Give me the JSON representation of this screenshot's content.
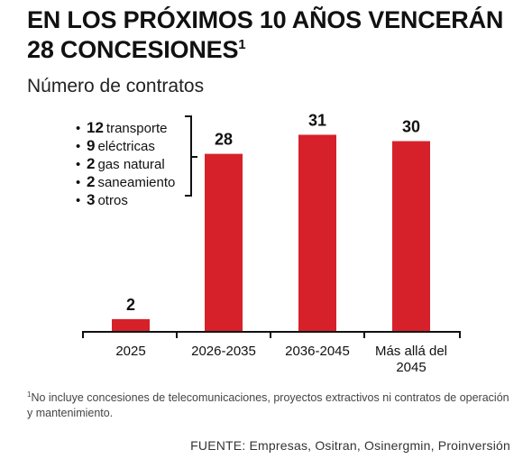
{
  "title": {
    "line1": "EN LOS PRÓXIMOS 10 AÑOS VENCERÁN",
    "line2": "28 CONCESIONES",
    "sup": "1"
  },
  "subtitle": "Número de contratos",
  "breakdown": [
    {
      "bullet": "•",
      "count": "12",
      "label": "transporte"
    },
    {
      "bullet": "•",
      "count": "9",
      "label": "eléctricas"
    },
    {
      "bullet": "•",
      "count": "2",
      "label": "gas natural"
    },
    {
      "bullet": "•",
      "count": "2",
      "label": "saneamiento"
    },
    {
      "bullet": "•",
      "count": "3",
      "label": "otros"
    }
  ],
  "chart_data": {
    "type": "bar",
    "categories": [
      "2025",
      "2026-2035",
      "2036-2045",
      "Más allá del 2045"
    ],
    "category_lines": [
      [
        "2025"
      ],
      [
        "2026-2035"
      ],
      [
        "2036-2045"
      ],
      [
        "Más allá del",
        "2045"
      ]
    ],
    "values": [
      2,
      28,
      31,
      30
    ],
    "data_labels": [
      "2",
      "28",
      "31",
      "30"
    ],
    "ylim": [
      0,
      34
    ],
    "grid": false,
    "bar_color": "#d7212a"
  },
  "footnote": {
    "sup": "1",
    "text": "No incluye concesiones de telecomunicaciones, proyectos extractivos ni contratos de operación y mantenimiento."
  },
  "source": "FUENTE: Empresas, Ositran, Osinergmin, Proinversión"
}
